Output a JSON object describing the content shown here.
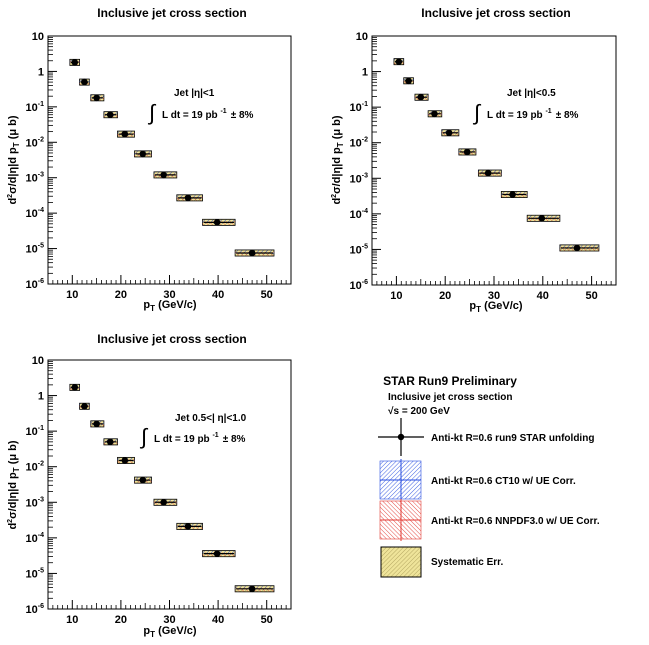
{
  "chart_data": [
    {
      "type": "scatter",
      "title": "Inclusive jet cross section",
      "xlabel": "p_T (GeV/c)",
      "ylabel": "d²σ/d|η|d p_T (μ b)",
      "xlim": [
        5,
        55
      ],
      "ylim": [
        1e-06,
        10
      ],
      "yscale": "log",
      "xticks": [
        10,
        20,
        30,
        40,
        50
      ],
      "yticks": [
        "10^-6",
        "10^-5",
        "10^-4",
        "10^-3",
        "10^-2",
        "10^-1",
        "1",
        "10"
      ],
      "annotation": {
        "jet_label": "Jet |η|<1",
        "lumi_prefix": "L dt = 19 pb",
        "lumi_exp": "-1",
        "lumi_unc": "± 8%"
      },
      "x": [
        10.5,
        12.5,
        15,
        17.8,
        20.8,
        24.5,
        28.8,
        33.8,
        39.8,
        47
      ],
      "bin_low": [
        9.5,
        11.5,
        13.8,
        16.5,
        19.3,
        22.8,
        26.8,
        31.5,
        36.8,
        43.5
      ],
      "bin_high": [
        11.5,
        13.5,
        16.5,
        19.3,
        22.8,
        26.3,
        31.5,
        36.8,
        43.5,
        51.5
      ],
      "values": [
        1.8,
        0.5,
        0.18,
        0.06,
        0.017,
        0.0047,
        0.0012,
        0.00027,
        5.5e-05,
        7.5e-06
      ]
    },
    {
      "type": "scatter",
      "title": "Inclusive jet cross section",
      "xlabel": "p_T (GeV/c)",
      "ylabel": "d²σ/d|η|d p_T (μ b)",
      "xlim": [
        5,
        55
      ],
      "ylim": [
        1e-06,
        10
      ],
      "yscale": "log",
      "xticks": [
        10,
        20,
        30,
        40,
        50
      ],
      "yticks": [
        "10^-6",
        "10^-5",
        "10^-4",
        "10^-3",
        "10^-2",
        "10^-1",
        "1",
        "10"
      ],
      "annotation": {
        "jet_label": "Jet |η|<0.5",
        "lumi_prefix": "L dt = 19 pb",
        "lumi_exp": "-1",
        "lumi_unc": "± 8%"
      },
      "x": [
        10.5,
        12.5,
        15,
        17.8,
        20.8,
        24.5,
        28.8,
        33.8,
        39.8,
        47
      ],
      "bin_low": [
        9.5,
        11.5,
        13.8,
        16.5,
        19.3,
        22.8,
        26.8,
        31.5,
        36.8,
        43.5
      ],
      "bin_high": [
        11.5,
        13.5,
        16.5,
        19.3,
        22.8,
        26.3,
        31.5,
        36.8,
        43.5,
        51.5
      ],
      "values": [
        1.9,
        0.55,
        0.19,
        0.065,
        0.019,
        0.0055,
        0.0014,
        0.00035,
        7.5e-05,
        1.1e-05
      ]
    },
    {
      "type": "scatter",
      "title": "Inclusive jet cross section",
      "xlabel": "p_T (GeV/c)",
      "ylabel": "d²σ/d|η|d p_T (μ b)",
      "xlim": [
        5,
        55
      ],
      "ylim": [
        1e-06,
        10
      ],
      "yscale": "log",
      "xticks": [
        10,
        20,
        30,
        40,
        50
      ],
      "yticks": [
        "10^-6",
        "10^-5",
        "10^-4",
        "10^-3",
        "10^-2",
        "10^-1",
        "1",
        "10"
      ],
      "annotation": {
        "jet_label": "Jet 0.5<| η|<1.0",
        "lumi_prefix": "L dt = 19 pb",
        "lumi_exp": "-1",
        "lumi_unc": "± 8%"
      },
      "x": [
        10.5,
        12.5,
        15,
        17.8,
        20.8,
        24.5,
        28.8,
        33.8,
        39.8,
        47
      ],
      "bin_low": [
        9.5,
        11.5,
        13.8,
        16.5,
        19.3,
        22.8,
        26.8,
        31.5,
        36.8,
        43.5
      ],
      "bin_high": [
        11.5,
        13.5,
        16.5,
        19.3,
        22.8,
        26.3,
        31.5,
        36.8,
        43.5,
        51.5
      ],
      "values": [
        1.7,
        0.5,
        0.16,
        0.05,
        0.015,
        0.0042,
        0.001,
        0.00021,
        3.6e-05,
        3.7e-06
      ]
    }
  ],
  "legend": {
    "title": "STAR Run9 Preliminary",
    "subtitle": "Inclusive jet cross section",
    "energy": "√s = 200 GeV",
    "items": [
      {
        "label": "Anti-kt R=0.6 run9 STAR unfolding",
        "color": "#000000",
        "kind": "data"
      },
      {
        "label": "Anti-kt R=0.6 CT10 w/ UE Corr.",
        "color": "#1f3fd8",
        "kind": "theory-blue"
      },
      {
        "label": "Anti-kt R=0.6 NNPDF3.0 w/ UE Corr.",
        "color": "#e0302c",
        "kind": "theory-red"
      },
      {
        "label": "Systematic Err.",
        "color": "#e8dc8a",
        "kind": "syst"
      }
    ]
  },
  "colors": {
    "syst_fill": "#efe49a",
    "blue": "#2a4fe0",
    "red": "#e23a33",
    "marker": "#000000"
  }
}
